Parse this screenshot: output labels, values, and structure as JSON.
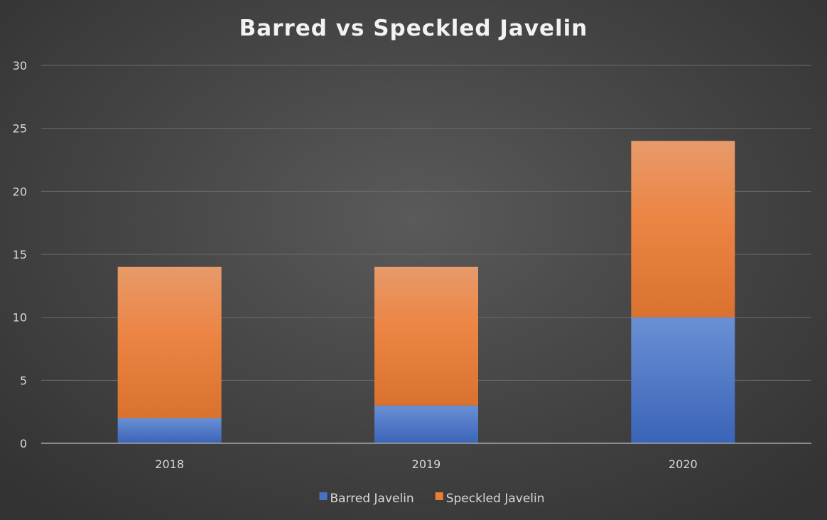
{
  "chart_data": {
    "type": "bar",
    "stacked": true,
    "title": "Barred vs Speckled Javelin",
    "xlabel": "",
    "ylabel": "",
    "categories": [
      "2018",
      "2019",
      "2020"
    ],
    "series": [
      {
        "name": "Barred Javelin",
        "values": [
          2,
          3,
          10
        ],
        "color": "#4472c4"
      },
      {
        "name": "Speckled Javelin",
        "values": [
          12,
          11,
          14
        ],
        "color": "#ed7d31"
      }
    ],
    "ylim": [
      0,
      30
    ],
    "yticks": [
      0,
      5,
      10,
      15,
      20,
      25,
      30
    ],
    "grid": true,
    "legend_position": "bottom"
  }
}
